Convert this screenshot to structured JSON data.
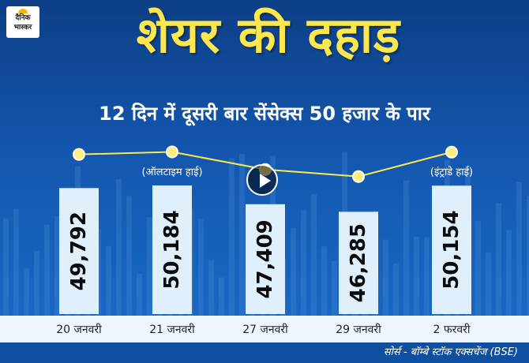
{
  "branding": {
    "logo_line1": "दैनिक",
    "logo_line2": "भास्कर",
    "logo_name": "sun-logo"
  },
  "colors": {
    "background": "#1458b0",
    "headline": "#fde74c",
    "bar": "#dff0fc",
    "line": "#fde74c",
    "marker": "#fdf07a"
  },
  "play_icon": "play-icon",
  "chart_data": {
    "type": "bar",
    "title": "शेयर की दहाड़",
    "subtitle": "12 दिन में दूसरी बार सेंसेक्स 50 हजार के पार",
    "categories": [
      "20 जनवरी",
      "21 जनवरी",
      "27 जनवरी",
      "29 जनवरी",
      "2 फरवरी"
    ],
    "values": [
      49792,
      50184,
      47409,
      46285,
      50154
    ],
    "value_labels": [
      "49,792",
      "50,184",
      "47,409",
      "46,285",
      "50,154"
    ],
    "annotations": [
      {
        "category": "21 जनवरी",
        "text": "(ऑलटाइम हाई)"
      },
      {
        "category": "2 फरवरी",
        "text": "(इंट्राडे हाई)"
      }
    ],
    "overlay_line": true,
    "ylim": [
      44000,
      51000
    ],
    "grid": false,
    "source": "सोर्स - बॉम्बे स्टॉक एक्सचेंज (BSE)"
  }
}
